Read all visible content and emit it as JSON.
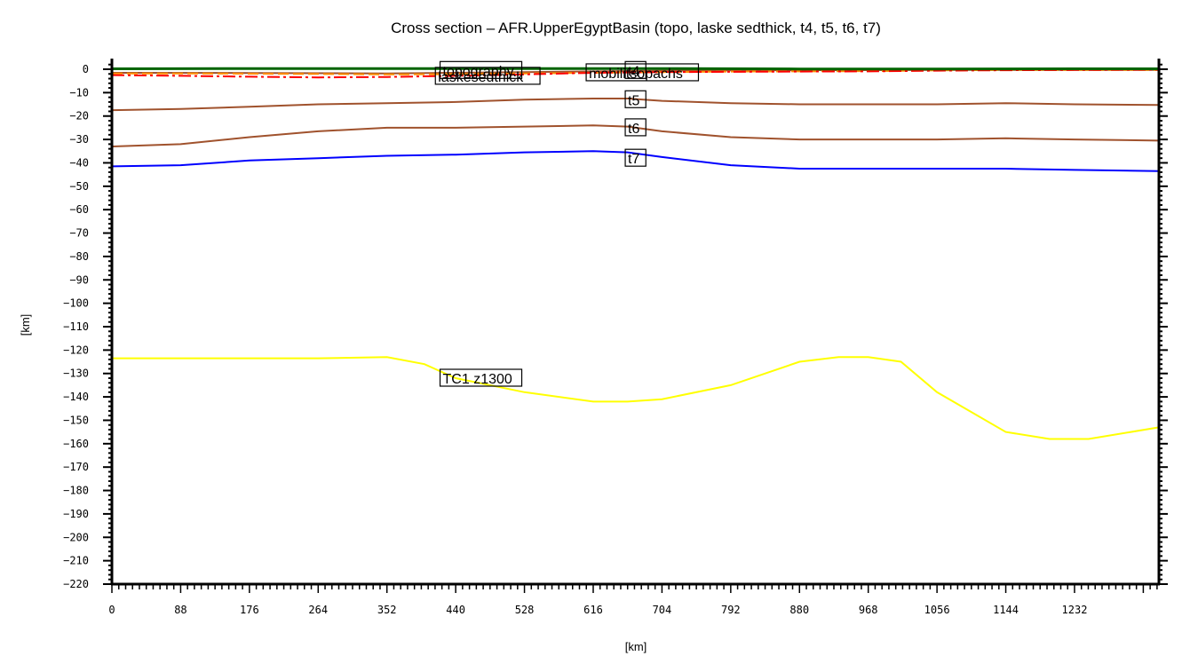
{
  "chart_data": {
    "type": "line",
    "title": "Cross section – AFR.UpperEgyptBasin (topo, laske sedthick, t4, t5, t6, t7)",
    "xlabel": "[km]",
    "ylabel": "[km]",
    "xlim": [
      0,
      1340
    ],
    "ylim": [
      -220,
      0
    ],
    "grid": false,
    "legend_position": "inline labels on curves",
    "x_ticks": [
      0,
      88,
      176,
      264,
      352,
      440,
      528,
      616,
      704,
      792,
      880,
      968,
      1056,
      1144,
      1232
    ],
    "y_ticks": [
      0,
      -10,
      -20,
      -30,
      -40,
      -50,
      -60,
      -70,
      -80,
      -90,
      -100,
      -110,
      -120,
      -130,
      -140,
      -150,
      -160,
      -170,
      -180,
      -190,
      -200,
      -210,
      -220
    ],
    "series": [
      {
        "name": "topography",
        "color": "#006400",
        "style": "solid",
        "x": [
          0,
          176,
          352,
          528,
          704,
          880,
          1056,
          1232,
          1340
        ],
        "y": [
          0.2,
          0.3,
          0.3,
          0.3,
          0.3,
          0.1,
          0.1,
          0.2,
          0.2
        ]
      },
      {
        "name": "laskesedthick",
        "color": "#ff0000",
        "style": "dash-dot",
        "x": [
          0,
          88,
          176,
          264,
          352,
          440,
          528,
          616,
          704,
          792,
          880,
          968,
          1056,
          1144,
          1232,
          1340
        ],
        "y": [
          -2.5,
          -2.8,
          -3.2,
          -3.5,
          -3.3,
          -2.8,
          -2.2,
          -1.5,
          -1.2,
          -1.1,
          -1.0,
          -0.9,
          -0.6,
          -0.4,
          -0.3,
          -0.2
        ]
      },
      {
        "name": "mobilitsopachs",
        "color": "#ff8c00",
        "style": "dashed",
        "x": [
          0,
          88,
          176,
          264,
          352,
          440,
          528,
          616,
          704,
          792,
          880,
          968,
          1056,
          1144,
          1232,
          1340
        ],
        "y": [
          -1.8,
          -1.8,
          -1.9,
          -2.0,
          -2.2,
          -2.1,
          -1.8,
          -1.5,
          -1.2,
          -1.0,
          -0.9,
          -0.8,
          -0.5,
          -0.3,
          -0.3,
          -0.3
        ]
      },
      {
        "name": "t4",
        "color": "#a0522d",
        "style": "solid",
        "x": [
          0,
          176,
          352,
          528,
          704,
          880,
          1056,
          1232,
          1340
        ],
        "y": [
          -1.5,
          -1.6,
          -1.8,
          -1.2,
          -0.6,
          -0.4,
          -0.3,
          -0.3,
          -0.3
        ]
      },
      {
        "name": "t5",
        "color": "#a0522d",
        "style": "solid",
        "x": [
          0,
          88,
          176,
          264,
          352,
          440,
          528,
          616,
          660,
          704,
          792,
          880,
          968,
          1056,
          1144,
          1232,
          1340
        ],
        "y": [
          -17.5,
          -17,
          -16,
          -15,
          -14.5,
          -14,
          -13,
          -12.5,
          -12.5,
          -13.5,
          -14.5,
          -15,
          -15,
          -15,
          -14.5,
          -15,
          -15.3
        ]
      },
      {
        "name": "t6",
        "color": "#a0522d",
        "style": "solid",
        "x": [
          0,
          88,
          176,
          264,
          352,
          440,
          528,
          616,
          660,
          704,
          792,
          880,
          968,
          1056,
          1144,
          1232,
          1340
        ],
        "y": [
          -33,
          -32,
          -29,
          -26.5,
          -25,
          -25,
          -24.5,
          -24,
          -24.5,
          -26.5,
          -29,
          -30,
          -30,
          -30,
          -29.5,
          -30,
          -30.5
        ]
      },
      {
        "name": "t7",
        "color": "#0000ff",
        "style": "solid",
        "x": [
          0,
          88,
          176,
          264,
          352,
          440,
          528,
          616,
          660,
          704,
          792,
          880,
          968,
          1056,
          1144,
          1232,
          1340
        ],
        "y": [
          -41.5,
          -41,
          -39,
          -38,
          -37,
          -36.5,
          -35.5,
          -35,
          -35.5,
          -37.5,
          -41,
          -42.5,
          -42.5,
          -42.5,
          -42.5,
          -43,
          -43.5
        ]
      },
      {
        "name": "TC1_z1300",
        "color": "#ffff00",
        "style": "solid",
        "x": [
          0,
          88,
          176,
          264,
          352,
          400,
          440,
          528,
          616,
          660,
          704,
          792,
          880,
          930,
          968,
          1010,
          1056,
          1144,
          1200,
          1250,
          1340
        ],
        "y": [
          -123.5,
          -123.5,
          -123.5,
          -123.5,
          -123,
          -126,
          -132,
          -138,
          -142,
          -142,
          -141,
          -135,
          -125,
          -123,
          -123,
          -125,
          -138,
          -155,
          -158,
          -158,
          -153
        ]
      }
    ],
    "annotations": [
      {
        "text": "topography",
        "x": 420,
        "y": -0.5
      },
      {
        "text": "laskesedthick",
        "x": 414,
        "y": -3
      },
      {
        "text": "mobilitsopachs",
        "x": 607,
        "y": -1.5
      },
      {
        "text": "t4",
        "x": 657,
        "y": -0.5
      },
      {
        "text": "t5",
        "x": 657,
        "y": -13
      },
      {
        "text": "t6",
        "x": 657,
        "y": -25
      },
      {
        "text": "t7",
        "x": 657,
        "y": -38
      },
      {
        "text": "TC1  z1300",
        "x": 420,
        "y": -132
      }
    ]
  }
}
